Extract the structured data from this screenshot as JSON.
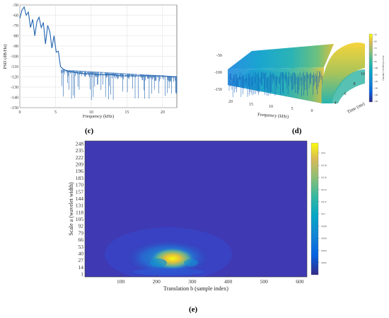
{
  "chart_data": [
    {
      "panel": "(c)",
      "type": "line",
      "xlabel": "Frequency (kHz)",
      "ylabel": "PSD (dB/Hz)",
      "xlim": [
        0,
        22
      ],
      "ylim": [
        -150,
        -50
      ],
      "x_ticks": [
        "0",
        "5",
        "10",
        "15",
        "20"
      ],
      "y_ticks": [
        "-50",
        "-60",
        "-70",
        "-80",
        "-90",
        "-100",
        "-110",
        "-120",
        "-130",
        "-140",
        "-150"
      ],
      "grid": true,
      "line_color": "#1f63b0",
      "series": [
        {
          "x": [
            0,
            0.3,
            0.6,
            0.9,
            1.2,
            1.5,
            1.8,
            2.1,
            2.4,
            2.7,
            3.0,
            3.3,
            3.6,
            3.9,
            4.2,
            4.5,
            4.8,
            5.1,
            5.4,
            5.7,
            6.0,
            6.5,
            7,
            8,
            9,
            10,
            11,
            12,
            13,
            14,
            15,
            16,
            17,
            18,
            19,
            20,
            21,
            22
          ],
          "y": [
            -63,
            -55,
            -52,
            -60,
            -57,
            -72,
            -64,
            -80,
            -66,
            -62,
            -72,
            -67,
            -88,
            -70,
            -76,
            -92,
            -80,
            -96,
            -95,
            -110,
            -112,
            -114,
            -115,
            -116,
            -117,
            -117,
            -118,
            -118,
            -118,
            -119,
            -119,
            -119,
            -119,
            -119,
            -119,
            -119,
            -120,
            -120
          ]
        }
      ]
    },
    {
      "panel": "(d)",
      "type": "surface",
      "xlabel": "Frequency (kHz)",
      "ylabel": "Time (ms)",
      "zlabel": "Power/frequency (dB/Hz)",
      "x_ticks": [
        "20",
        "15",
        "10",
        "5",
        "0"
      ],
      "y_ticks": [
        "4",
        "6",
        "8",
        "10"
      ],
      "z_ticks": [
        "-50",
        "-100",
        "-150"
      ],
      "colorbar_ticks": [
        "-50",
        "-60",
        "-70",
        "-80",
        "-90",
        "-100",
        "-110",
        "-120",
        "-130",
        "-140",
        "-150"
      ],
      "colormap": "parula",
      "range_db": [
        -150,
        -50
      ]
    },
    {
      "panel": "(e)",
      "type": "heatmap",
      "xlabel": "Translation b (sample index)",
      "ylabel": "Scale a (wavelet width)",
      "xlim": [
        0,
        620
      ],
      "x_ticks": [
        "100",
        "200",
        "300",
        "400",
        "500",
        "600"
      ],
      "y_ticks": [
        "1",
        "14",
        "27",
        "40",
        "53",
        "66",
        "79",
        "92",
        "105",
        "118",
        "131",
        "144",
        "157",
        "170",
        "183",
        "196",
        "209",
        "222",
        "235",
        "248"
      ],
      "colorbar_ticks": [
        "0.02",
        "0.018",
        "0.016",
        "0.014",
        "0.012",
        "0.01",
        "0.008",
        "0.006",
        "0.004",
        "0.002"
      ],
      "colormap": "parula",
      "peak": {
        "translation": 260,
        "scale": 36
      }
    }
  ],
  "labels": {
    "c": "(c)",
    "d": "(d)",
    "e": "(e)",
    "c_xlabel": "Frequency (kHz)",
    "c_ylabel": "PSD (dB/Hz)",
    "d_xlabel": "Frequency (kHz)",
    "d_ylabel": "Time (ms)",
    "d_zlabel": "Power/frequency (dB/Hz)",
    "e_xlabel": "Translation b (sample index)",
    "e_ylabel": "Scale a (wavelet width)"
  }
}
